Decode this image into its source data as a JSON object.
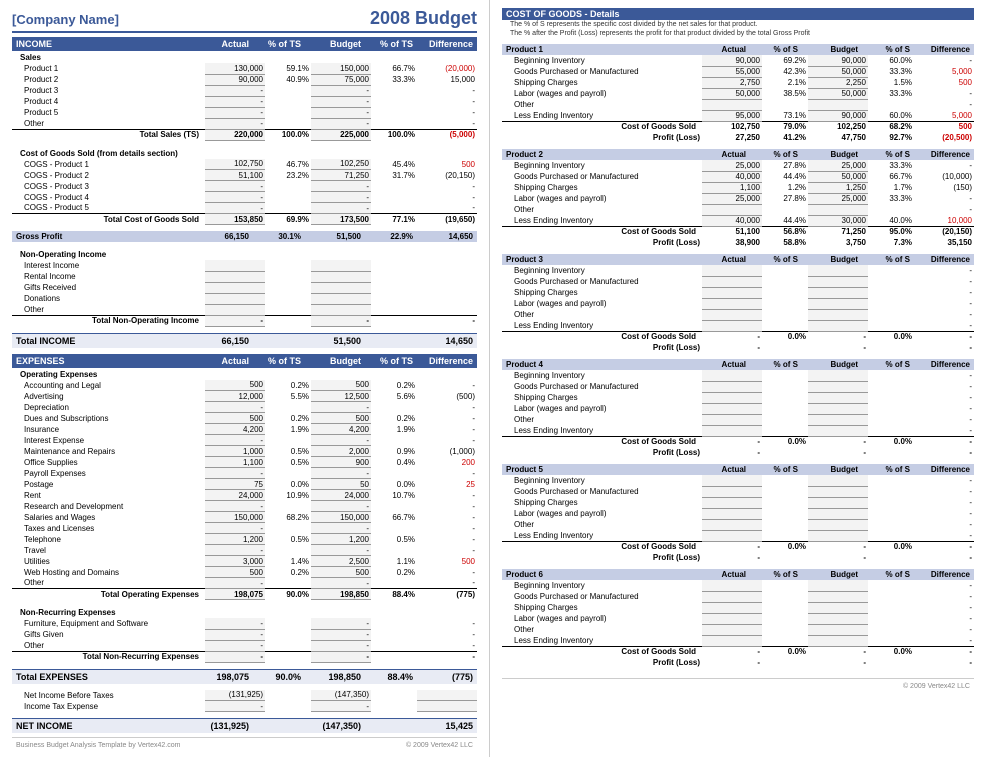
{
  "header": {
    "company": "[Company Name]",
    "title": "2008 Budget"
  },
  "colHeaders": {
    "actual": "Actual",
    "pctTS": "% of TS",
    "budget": "Budget",
    "diff": "Difference"
  },
  "income": {
    "title": "INCOME",
    "salesLabel": "Sales",
    "sales": [
      {
        "name": "Product 1",
        "actual": "130,000",
        "apct": "59.1%",
        "budget": "150,000",
        "bpct": "66.7%",
        "diff": "(20,000)",
        "neg": true
      },
      {
        "name": "Product 2",
        "actual": "90,000",
        "apct": "40.9%",
        "budget": "75,000",
        "bpct": "33.3%",
        "diff": "15,000"
      },
      {
        "name": "Product 3",
        "actual": "-",
        "budget": "-",
        "diff": "-"
      },
      {
        "name": "Product 4",
        "actual": "-",
        "budget": "-",
        "diff": "-"
      },
      {
        "name": "Product 5",
        "actual": "-",
        "budget": "-",
        "diff": "-"
      },
      {
        "name": "Other",
        "actual": "-",
        "budget": "-",
        "diff": "-"
      }
    ],
    "salesTotal": {
      "label": "Total Sales (TS)",
      "actual": "220,000",
      "apct": "100.0%",
      "budget": "225,000",
      "bpct": "100.0%",
      "diff": "(5,000)",
      "neg": true
    },
    "cogsLabel": "Cost of Goods Sold (from details section)",
    "cogs": [
      {
        "name": "COGS - Product 1",
        "actual": "102,750",
        "apct": "46.7%",
        "budget": "102,250",
        "bpct": "45.4%",
        "diff": "500",
        "neg": true
      },
      {
        "name": "COGS - Product 2",
        "actual": "51,100",
        "apct": "23.2%",
        "budget": "71,250",
        "bpct": "31.7%",
        "diff": "(20,150)"
      },
      {
        "name": "COGS - Product 3",
        "actual": "-",
        "budget": "-",
        "diff": "-"
      },
      {
        "name": "COGS - Product 4",
        "actual": "-",
        "budget": "-",
        "diff": "-"
      },
      {
        "name": "COGS - Product 5",
        "actual": "-",
        "budget": "-",
        "diff": "-"
      }
    ],
    "cogsTotal": {
      "label": "Total Cost of Goods Sold",
      "actual": "153,850",
      "apct": "69.9%",
      "budget": "173,500",
      "bpct": "77.1%",
      "diff": "(19,650)"
    },
    "grossProfit": {
      "label": "Gross Profit",
      "actual": "66,150",
      "apct": "30.1%",
      "budget": "51,500",
      "bpct": "22.9%",
      "diff": "14,650"
    },
    "nonOpLabel": "Non-Operating Income",
    "nonOp": [
      {
        "name": "Interest Income"
      },
      {
        "name": "Rental Income"
      },
      {
        "name": "Gifts Received"
      },
      {
        "name": "Donations"
      },
      {
        "name": "Other"
      }
    ],
    "nonOpTotal": {
      "label": "Total Non-Operating Income",
      "actual": "-",
      "budget": "-",
      "diff": "-"
    },
    "totalIncome": {
      "label": "Total INCOME",
      "actual": "66,150",
      "budget": "51,500",
      "diff": "14,650"
    }
  },
  "expenses": {
    "title": "EXPENSES",
    "opLabel": "Operating Expenses",
    "op": [
      {
        "name": "Accounting and Legal",
        "actual": "500",
        "apct": "0.2%",
        "budget": "500",
        "bpct": "0.2%",
        "diff": "-"
      },
      {
        "name": "Advertising",
        "actual": "12,000",
        "apct": "5.5%",
        "budget": "12,500",
        "bpct": "5.6%",
        "diff": "(500)"
      },
      {
        "name": "Depreciation",
        "actual": "-",
        "budget": "-",
        "diff": "-"
      },
      {
        "name": "Dues and Subscriptions",
        "actual": "500",
        "apct": "0.2%",
        "budget": "500",
        "bpct": "0.2%",
        "diff": "-"
      },
      {
        "name": "Insurance",
        "actual": "4,200",
        "apct": "1.9%",
        "budget": "4,200",
        "bpct": "1.9%",
        "diff": "-"
      },
      {
        "name": "Interest Expense",
        "actual": "-",
        "budget": "-",
        "diff": "-"
      },
      {
        "name": "Maintenance and Repairs",
        "actual": "1,000",
        "apct": "0.5%",
        "budget": "2,000",
        "bpct": "0.9%",
        "diff": "(1,000)"
      },
      {
        "name": "Office Supplies",
        "actual": "1,100",
        "apct": "0.5%",
        "budget": "900",
        "bpct": "0.4%",
        "diff": "200",
        "neg": true
      },
      {
        "name": "Payroll Expenses",
        "actual": "-",
        "budget": "-",
        "diff": "-"
      },
      {
        "name": "Postage",
        "actual": "75",
        "apct": "0.0%",
        "budget": "50",
        "bpct": "0.0%",
        "diff": "25",
        "neg": true
      },
      {
        "name": "Rent",
        "actual": "24,000",
        "apct": "10.9%",
        "budget": "24,000",
        "bpct": "10.7%",
        "diff": "-"
      },
      {
        "name": "Research and Development",
        "actual": "-",
        "budget": "-",
        "diff": "-"
      },
      {
        "name": "Salaries and Wages",
        "actual": "150,000",
        "apct": "68.2%",
        "budget": "150,000",
        "bpct": "66.7%",
        "diff": "-"
      },
      {
        "name": "Taxes and Licenses",
        "actual": "-",
        "budget": "-",
        "diff": "-"
      },
      {
        "name": "Telephone",
        "actual": "1,200",
        "apct": "0.5%",
        "budget": "1,200",
        "bpct": "0.5%",
        "diff": "-"
      },
      {
        "name": "Travel",
        "actual": "-",
        "budget": "-",
        "diff": "-"
      },
      {
        "name": "Utilities",
        "actual": "3,000",
        "apct": "1.4%",
        "budget": "2,500",
        "bpct": "1.1%",
        "diff": "500",
        "neg": true
      },
      {
        "name": "Web Hosting and Domains",
        "actual": "500",
        "apct": "0.2%",
        "budget": "500",
        "bpct": "0.2%",
        "diff": "-"
      },
      {
        "name": "Other",
        "actual": "-",
        "budget": "-",
        "diff": "-"
      }
    ],
    "opTotal": {
      "label": "Total Operating Expenses",
      "actual": "198,075",
      "apct": "90.0%",
      "budget": "198,850",
      "bpct": "88.4%",
      "diff": "(775)"
    },
    "nonRecLabel": "Non-Recurring Expenses",
    "nonRec": [
      {
        "name": "Furniture, Equipment and Software",
        "actual": "-",
        "budget": "-",
        "diff": "-"
      },
      {
        "name": "Gifts Given",
        "actual": "-",
        "budget": "-",
        "diff": "-"
      },
      {
        "name": "Other",
        "actual": "-",
        "budget": "-",
        "diff": "-"
      }
    ],
    "nonRecTotal": {
      "label": "Total Non-Recurring Expenses",
      "actual": "-",
      "budget": "-",
      "diff": "-"
    },
    "totalExpenses": {
      "label": "Total EXPENSES",
      "actual": "198,075",
      "apct": "90.0%",
      "budget": "198,850",
      "bpct": "88.4%",
      "diff": "(775)"
    },
    "netBefore": {
      "label": "Net Income Before Taxes",
      "actual": "(131,925)",
      "budget": "(147,350)"
    },
    "tax": {
      "label": "Income Tax Expense",
      "actual": "-",
      "budget": "-"
    },
    "netIncome": {
      "label": "NET INCOME",
      "actual": "(131,925)",
      "budget": "(147,350)",
      "diff": "15,425"
    }
  },
  "footer": {
    "left": "Business Budget Analysis Template by Vertex42.com",
    "right": "© 2009 Vertex42 LLC"
  },
  "cogDetail": {
    "title": "COST OF GOODS - Details",
    "note1": "The % of S represents the specific cost divided by the net sales for that product.",
    "note2": "The % after the Profit (Loss) represents the profit for that product divided by the total Gross Profit",
    "colHeaders": {
      "actual": "Actual",
      "pctS": "% of S",
      "budget": "Budget",
      "diff": "Difference"
    },
    "rowLabels": [
      "Beginning Inventory",
      "Goods Purchased or Manufactured",
      "Shipping Charges",
      "Labor (wages and payroll)",
      "Other",
      "Less Ending Inventory"
    ],
    "cogsLabel": "Cost of Goods Sold",
    "profitLabel": "Profit (Loss)",
    "products": [
      {
        "name": "Product 1",
        "rows": [
          {
            "actual": "90,000",
            "apct": "69.2%",
            "budget": "90,000",
            "bpct": "60.0%",
            "diff": "-"
          },
          {
            "actual": "55,000",
            "apct": "42.3%",
            "budget": "50,000",
            "bpct": "33.3%",
            "diff": "5,000",
            "neg": true
          },
          {
            "actual": "2,750",
            "apct": "2.1%",
            "budget": "2,250",
            "bpct": "1.5%",
            "diff": "500",
            "neg": true
          },
          {
            "actual": "50,000",
            "apct": "38.5%",
            "budget": "50,000",
            "bpct": "33.3%",
            "diff": "-"
          },
          {
            "actual": "",
            "budget": "",
            "diff": "-"
          },
          {
            "actual": "95,000",
            "apct": "73.1%",
            "budget": "90,000",
            "bpct": "60.0%",
            "diff": "5,000",
            "neg": true
          }
        ],
        "cogs": {
          "actual": "102,750",
          "apct": "79.0%",
          "budget": "102,250",
          "bpct": "68.2%",
          "diff": "500",
          "neg": true
        },
        "profit": {
          "actual": "27,250",
          "apct": "41.2%",
          "budget": "47,750",
          "bpct": "92.7%",
          "diff": "(20,500)",
          "neg": true
        }
      },
      {
        "name": "Product 2",
        "rows": [
          {
            "actual": "25,000",
            "apct": "27.8%",
            "budget": "25,000",
            "bpct": "33.3%",
            "diff": "-"
          },
          {
            "actual": "40,000",
            "apct": "44.4%",
            "budget": "50,000",
            "bpct": "66.7%",
            "diff": "(10,000)"
          },
          {
            "actual": "1,100",
            "apct": "1.2%",
            "budget": "1,250",
            "bpct": "1.7%",
            "diff": "(150)"
          },
          {
            "actual": "25,000",
            "apct": "27.8%",
            "budget": "25,000",
            "bpct": "33.3%",
            "diff": "-"
          },
          {
            "actual": "",
            "budget": "",
            "diff": "-"
          },
          {
            "actual": "40,000",
            "apct": "44.4%",
            "budget": "30,000",
            "bpct": "40.0%",
            "diff": "10,000",
            "neg": true
          }
        ],
        "cogs": {
          "actual": "51,100",
          "apct": "56.8%",
          "budget": "71,250",
          "bpct": "95.0%",
          "diff": "(20,150)"
        },
        "profit": {
          "actual": "38,900",
          "apct": "58.8%",
          "budget": "3,750",
          "bpct": "7.3%",
          "diff": "35,150"
        }
      },
      {
        "name": "Product 3",
        "empty": true
      },
      {
        "name": "Product 4",
        "empty": true
      },
      {
        "name": "Product 5",
        "empty": true
      },
      {
        "name": "Product 6",
        "empty": true
      }
    ]
  }
}
